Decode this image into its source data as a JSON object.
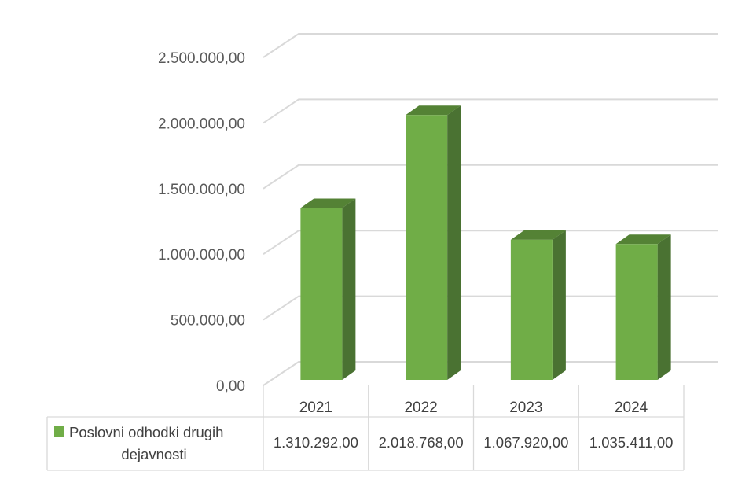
{
  "chart_data": {
    "type": "bar",
    "style": "3d-column-with-data-table",
    "categories": [
      "2021",
      "2022",
      "2023",
      "2024"
    ],
    "series": [
      {
        "name": "Poslovni odhodki drugih dejavnosti",
        "name_lines": [
          "Poslovni odhodki drugih",
          "dejavnosti"
        ],
        "values": [
          1310292,
          2018768,
          1067920,
          1035411
        ],
        "value_labels": [
          "1.310.292,00",
          "2.018.768,00",
          "1.067.920,00",
          "1.035.411,00"
        ],
        "color": "#70ad47",
        "side_color": "#4a7232",
        "top_color": "#548235"
      }
    ],
    "ylim": [
      0,
      2500000
    ],
    "yticks": [
      0,
      500000,
      1000000,
      1500000,
      2000000,
      2500000
    ],
    "ytick_labels": [
      "0,00",
      "500.000,00",
      "1.000.000,00",
      "1.500.000,00",
      "2.000.000,00",
      "2.500.000,00"
    ],
    "grid": true,
    "legend": "data-table-left",
    "title": "",
    "xlabel": "",
    "ylabel": ""
  }
}
